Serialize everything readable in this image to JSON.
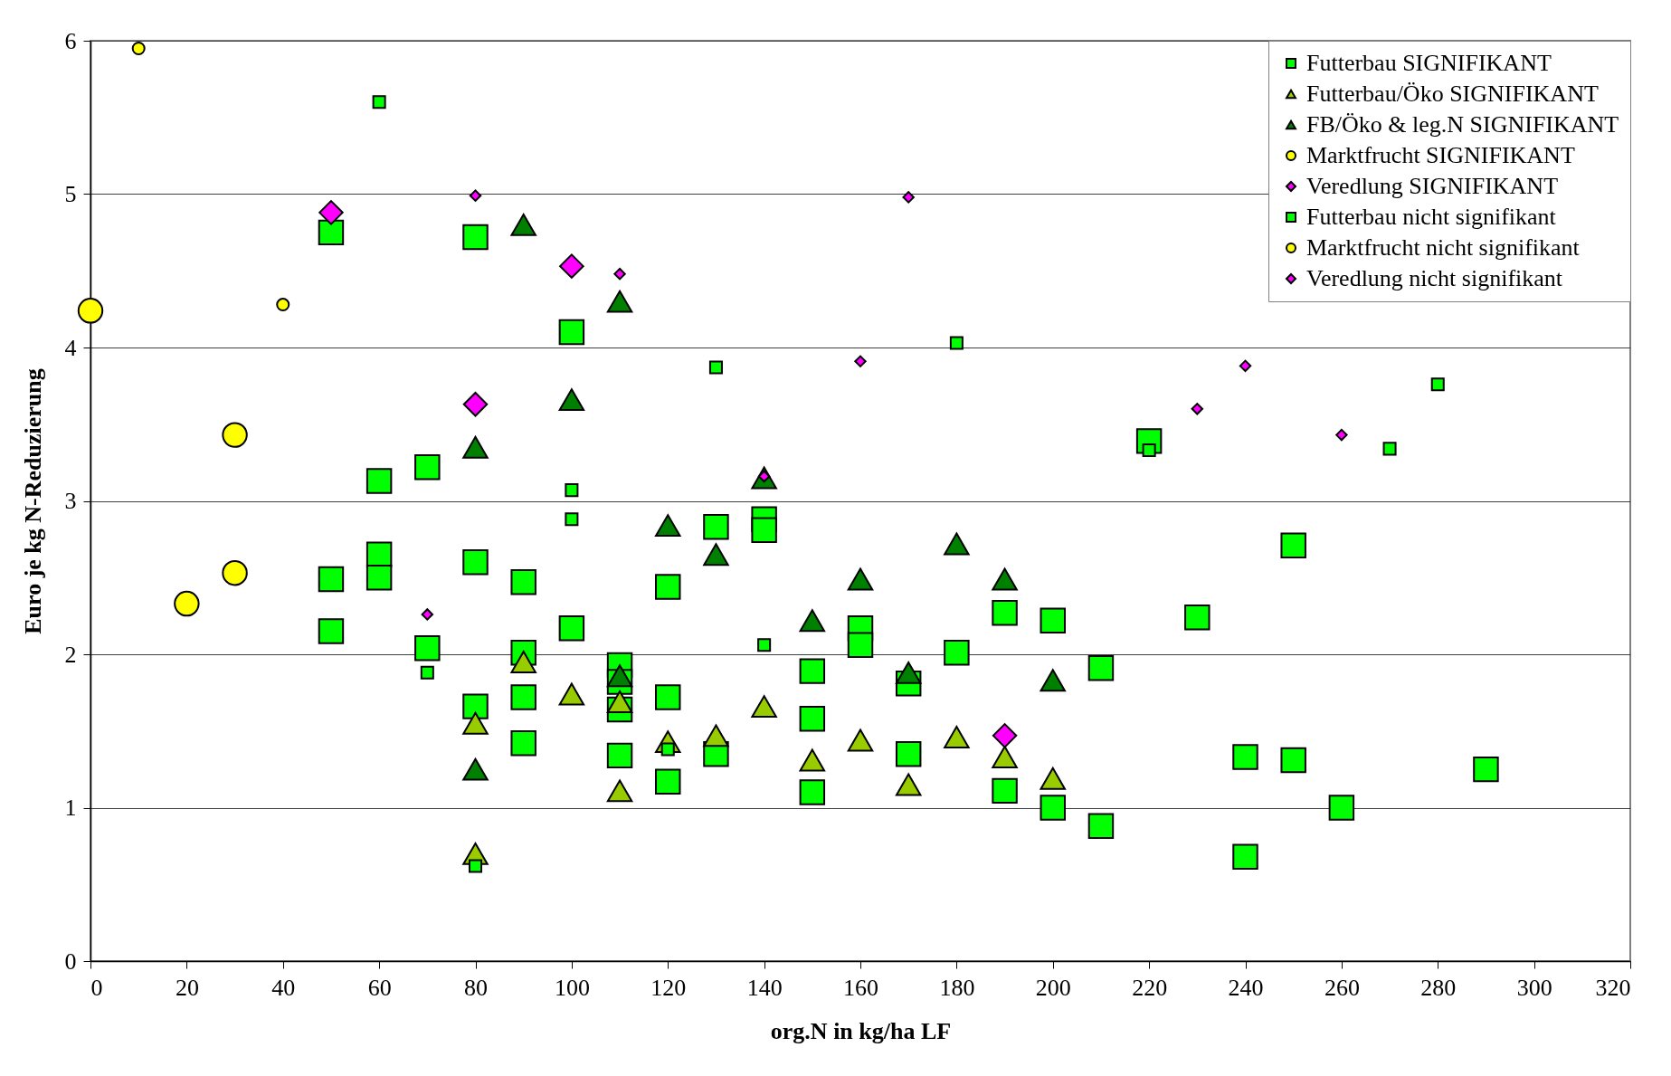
{
  "chart_data": {
    "type": "scatter",
    "xlabel": "org.N in kg/ha LF",
    "ylabel": "Euro je kg N-Reduzierung",
    "xlim": [
      0,
      320
    ],
    "xticks": [
      0,
      20,
      40,
      60,
      80,
      100,
      120,
      140,
      160,
      180,
      200,
      220,
      240,
      260,
      280,
      300,
      320
    ],
    "ylim": [
      0,
      6
    ],
    "yticks": [
      0,
      1,
      2,
      3,
      4,
      5,
      6
    ],
    "grid": "y",
    "legend": "top right",
    "series": [
      {
        "name": "Futterbau SIGNIFIKANT",
        "color": "#00ff00",
        "marker": "square",
        "x": [
          50,
          80,
          100,
          60,
          70,
          60,
          60,
          50,
          50,
          70,
          80,
          80,
          90,
          90,
          90,
          90,
          100,
          110,
          110,
          110,
          110,
          120,
          120,
          120,
          130,
          130,
          140,
          140,
          150,
          150,
          150,
          160,
          160,
          170,
          170,
          180,
          190,
          190,
          200,
          200,
          210,
          210,
          220,
          230,
          240,
          240,
          250,
          250,
          260,
          290
        ],
        "values": [
          4.75,
          4.72,
          4.1,
          3.13,
          3.22,
          2.65,
          2.5,
          2.49,
          2.15,
          2.04,
          2.6,
          1.66,
          2.47,
          2.01,
          1.72,
          1.42,
          2.17,
          1.93,
          1.82,
          1.64,
          1.34,
          2.44,
          1.72,
          1.17,
          2.83,
          1.35,
          2.88,
          2.81,
          1.89,
          1.58,
          1.1,
          2.17,
          2.06,
          1.81,
          1.35,
          2.01,
          2.27,
          1.11,
          2.22,
          1.0,
          1.91,
          0.88,
          3.39,
          2.24,
          1.33,
          0.68,
          2.71,
          1.31,
          1.0,
          1.25
        ]
      },
      {
        "name": "Futterbau/Öko SIGNIFIKANT",
        "color": "#99cc00",
        "marker": "triangle",
        "x": [
          90,
          100,
          80,
          80,
          110,
          110,
          120,
          130,
          140,
          150,
          160,
          170,
          180,
          190,
          200
        ],
        "values": [
          1.95,
          1.74,
          1.55,
          0.7,
          1.69,
          1.11,
          1.43,
          1.47,
          1.66,
          1.31,
          1.44,
          1.15,
          1.46,
          1.33,
          1.19
        ]
      },
      {
        "name": "FB/Öko & leg.N SIGNIFIKANT",
        "color": "#008000",
        "marker": "triangle",
        "x": [
          90,
          110,
          100,
          80,
          140,
          120,
          130,
          180,
          160,
          190,
          150,
          110,
          170,
          200,
          80
        ],
        "values": [
          4.8,
          4.3,
          3.66,
          3.35,
          3.15,
          2.84,
          2.65,
          2.72,
          2.49,
          2.49,
          2.22,
          1.86,
          1.88,
          1.83,
          1.25
        ]
      },
      {
        "name": "Marktfrucht SIGNIFIKANT",
        "color": "#ffff00",
        "marker": "circle",
        "x": [
          0,
          30,
          30,
          20
        ],
        "values": [
          4.24,
          3.43,
          2.53,
          2.33
        ]
      },
      {
        "name": "Veredlung SIGNIFIKANT",
        "color": "#ff00ff",
        "marker": "diamond",
        "x": [
          50,
          100,
          80,
          190
        ],
        "values": [
          4.88,
          4.53,
          3.63,
          1.47
        ]
      },
      {
        "name": "Futterbau nicht signifikant",
        "color": "#00ff00",
        "marker": "square",
        "x": [
          60,
          80,
          70,
          100,
          100,
          130,
          140,
          120,
          180,
          220,
          270,
          280
        ],
        "values": [
          5.6,
          0.62,
          1.88,
          3.07,
          2.88,
          3.87,
          2.06,
          1.38,
          4.03,
          3.33,
          3.34,
          3.76
        ]
      },
      {
        "name": "Marktfrucht nicht signifikant",
        "color": "#ffff00",
        "marker": "circle",
        "x": [
          10,
          40
        ],
        "values": [
          5.95,
          4.28
        ]
      },
      {
        "name": "Veredlung nicht signifikant",
        "color": "#ff00ff",
        "marker": "diamond",
        "x": [
          80,
          170,
          110,
          160,
          140,
          70,
          230,
          240,
          260
        ],
        "values": [
          4.99,
          4.98,
          4.48,
          3.91,
          3.16,
          2.26,
          3.6,
          3.88,
          3.43
        ]
      }
    ]
  }
}
